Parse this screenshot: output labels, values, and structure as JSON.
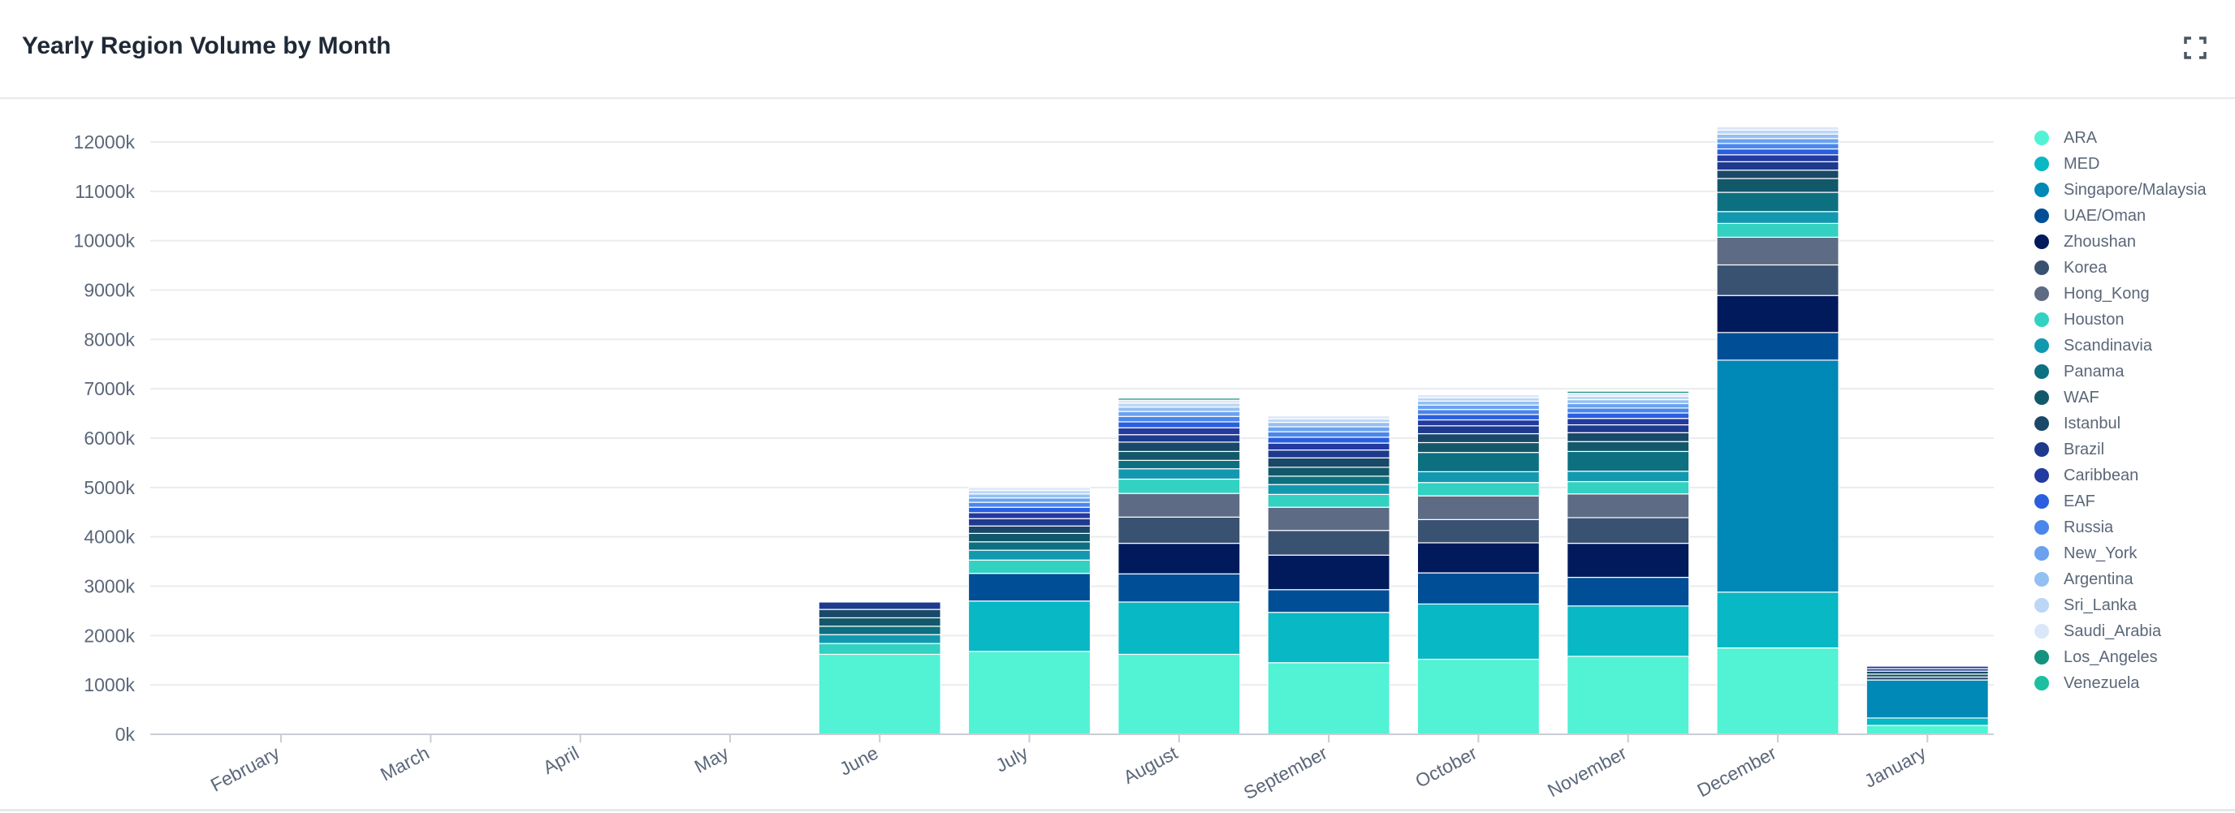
{
  "header": {
    "title": "Yearly Region Volume by Month",
    "expand_icon": "expand-icon"
  },
  "chart_data": {
    "type": "bar",
    "stacked": true,
    "title": "Yearly Region Volume by Month",
    "xlabel": "",
    "ylabel": "",
    "ylim": [
      0,
      12000
    ],
    "y_ticks": [
      "0k",
      "1000k",
      "2000k",
      "3000k",
      "4000k",
      "5000k",
      "6000k",
      "7000k",
      "8000k",
      "9000k",
      "10000k",
      "11000k",
      "12000k"
    ],
    "y_tick_values": [
      0,
      1000,
      2000,
      3000,
      4000,
      5000,
      6000,
      7000,
      8000,
      9000,
      10000,
      11000,
      12000
    ],
    "grid": true,
    "legend_position": "right",
    "categories": [
      "February",
      "March",
      "April",
      "May",
      "June",
      "July",
      "August",
      "September",
      "October",
      "November",
      "December",
      "January"
    ],
    "series": [
      {
        "name": "ARA",
        "color": "#52f2d4",
        "values": [
          0,
          0,
          0,
          0,
          1620,
          1680,
          1620,
          1450,
          1520,
          1580,
          1750,
          180
        ]
      },
      {
        "name": "MED",
        "color": "#08b8c4",
        "values": [
          0,
          0,
          0,
          0,
          0,
          1020,
          1060,
          1020,
          1120,
          1020,
          1130,
          150
        ]
      },
      {
        "name": "Singapore/Malaysia",
        "color": "#0088b6",
        "values": [
          0,
          0,
          0,
          0,
          0,
          0,
          0,
          0,
          0,
          0,
          4700,
          770
        ]
      },
      {
        "name": "UAE/Oman",
        "color": "#004e96",
        "values": [
          0,
          0,
          0,
          0,
          0,
          560,
          570,
          460,
          630,
          580,
          560,
          0
        ]
      },
      {
        "name": "Zhoushan",
        "color": "#001a5c",
        "values": [
          0,
          0,
          0,
          0,
          0,
          0,
          620,
          700,
          610,
          690,
          750,
          0
        ]
      },
      {
        "name": "Korea",
        "color": "#3a5272",
        "values": [
          0,
          0,
          0,
          0,
          0,
          0,
          530,
          500,
          470,
          520,
          620,
          60
        ]
      },
      {
        "name": "Hong_Kong",
        "color": "#5d6b85",
        "values": [
          0,
          0,
          0,
          0,
          0,
          0,
          480,
          470,
          480,
          480,
          560,
          0
        ]
      },
      {
        "name": "Houston",
        "color": "#33d1c1",
        "values": [
          0,
          0,
          0,
          0,
          220,
          270,
          290,
          260,
          270,
          250,
          280,
          0
        ]
      },
      {
        "name": "Scandinavia",
        "color": "#1299b0",
        "values": [
          0,
          0,
          0,
          0,
          180,
          200,
          210,
          200,
          220,
          210,
          240,
          0
        ]
      },
      {
        "name": "Panama",
        "color": "#0c7080",
        "values": [
          0,
          0,
          0,
          0,
          170,
          170,
          170,
          170,
          390,
          400,
          390,
          0
        ]
      },
      {
        "name": "WAF",
        "color": "#13586a",
        "values": [
          0,
          0,
          0,
          0,
          170,
          170,
          180,
          180,
          200,
          200,
          280,
          60
        ]
      },
      {
        "name": "Istanbul",
        "color": "#1a4868",
        "values": [
          0,
          0,
          0,
          0,
          170,
          150,
          190,
          190,
          180,
          180,
          170,
          60
        ]
      },
      {
        "name": "Brazil",
        "color": "#1d3a8f",
        "values": [
          0,
          0,
          0,
          0,
          150,
          150,
          150,
          160,
          160,
          160,
          170,
          50
        ]
      },
      {
        "name": "Caribbean",
        "color": "#233aa0",
        "values": [
          0,
          0,
          0,
          0,
          0,
          120,
          140,
          140,
          120,
          130,
          140,
          50
        ]
      },
      {
        "name": "EAF",
        "color": "#2a5fe0",
        "values": [
          0,
          0,
          0,
          0,
          0,
          110,
          120,
          120,
          110,
          110,
          120,
          0
        ]
      },
      {
        "name": "Russia",
        "color": "#4a86ec",
        "values": [
          0,
          0,
          0,
          0,
          0,
          100,
          110,
          110,
          100,
          100,
          110,
          0
        ]
      },
      {
        "name": "New_York",
        "color": "#6aa2ef",
        "values": [
          0,
          0,
          0,
          0,
          0,
          90,
          100,
          100,
          90,
          90,
          100,
          0
        ]
      },
      {
        "name": "Argentina",
        "color": "#94bff2",
        "values": [
          0,
          0,
          0,
          0,
          0,
          80,
          90,
          90,
          80,
          80,
          90,
          0
        ]
      },
      {
        "name": "Sri_Lanka",
        "color": "#bcd6f6",
        "values": [
          0,
          0,
          0,
          0,
          0,
          70,
          80,
          70,
          70,
          70,
          80,
          0
        ]
      },
      {
        "name": "Saudi_Arabia",
        "color": "#dae7f8",
        "values": [
          0,
          0,
          0,
          0,
          0,
          60,
          60,
          60,
          60,
          60,
          70,
          0
        ]
      },
      {
        "name": "Los_Angeles",
        "color": "#14927e",
        "values": [
          0,
          0,
          0,
          0,
          0,
          0,
          40,
          0,
          0,
          40,
          0,
          0
        ]
      },
      {
        "name": "Venezuela",
        "color": "#1cbfa0",
        "values": [
          0,
          0,
          0,
          0,
          0,
          0,
          0,
          0,
          0,
          0,
          0,
          0
        ]
      }
    ]
  }
}
